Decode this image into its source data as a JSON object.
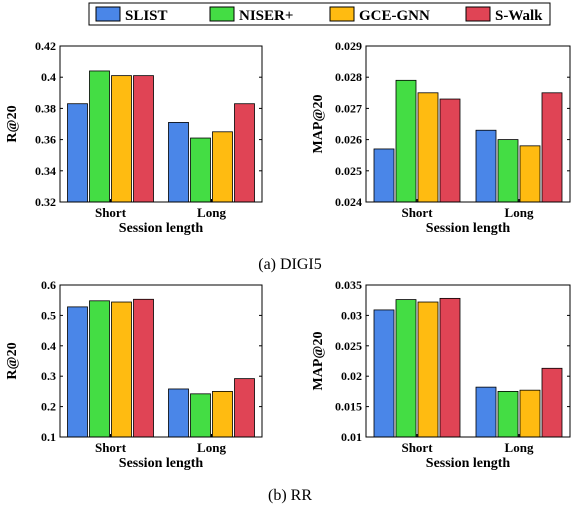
{
  "legend": {
    "series": [
      "SLIST",
      "NISER+",
      "GCE-GNN",
      "S-Walk"
    ],
    "colors": [
      "#4a86e8",
      "#44dd44",
      "#ffbb11",
      "#e04455"
    ]
  },
  "captions": [
    "(a) DIGI5",
    "(b) RR"
  ],
  "chart_data": [
    {
      "type": "bar",
      "categories": [
        "Short",
        "Long"
      ],
      "xlabel": "Session length",
      "ylabel": "R@20",
      "ylim": [
        0.32,
        0.42
      ],
      "ytick_labels": [
        "0.32",
        "0.34",
        "0.36",
        "0.38",
        "0.4",
        "0.42"
      ],
      "series": [
        {
          "name": "SLIST",
          "values": [
            0.383,
            0.371
          ]
        },
        {
          "name": "NISER+",
          "values": [
            0.404,
            0.361
          ]
        },
        {
          "name": "GCE-GNN",
          "values": [
            0.401,
            0.365
          ]
        },
        {
          "name": "S-Walk",
          "values": [
            0.401,
            0.383
          ]
        }
      ]
    },
    {
      "type": "bar",
      "categories": [
        "Short",
        "Long"
      ],
      "xlabel": "Session length",
      "ylabel": "MAP@20",
      "ylim": [
        0.024,
        0.029
      ],
      "ytick_labels": [
        "0.024",
        "0.025",
        "0.026",
        "0.027",
        "0.028",
        "0.029"
      ],
      "series": [
        {
          "name": "SLIST",
          "values": [
            0.0257,
            0.0263
          ]
        },
        {
          "name": "NISER+",
          "values": [
            0.0279,
            0.026
          ]
        },
        {
          "name": "GCE-GNN",
          "values": [
            0.0275,
            0.0258
          ]
        },
        {
          "name": "S-Walk",
          "values": [
            0.0273,
            0.0275
          ]
        }
      ]
    },
    {
      "type": "bar",
      "categories": [
        "Short",
        "Long"
      ],
      "xlabel": "Session length",
      "ylabel": "R@20",
      "ylim": [
        0.1,
        0.6
      ],
      "ytick_labels": [
        "0.1",
        "0.2",
        "0.3",
        "0.4",
        "0.5",
        "0.6"
      ],
      "series": [
        {
          "name": "SLIST",
          "values": [
            0.528,
            0.258
          ]
        },
        {
          "name": "NISER+",
          "values": [
            0.548,
            0.242
          ]
        },
        {
          "name": "GCE-GNN",
          "values": [
            0.544,
            0.25
          ]
        },
        {
          "name": "S-Walk",
          "values": [
            0.553,
            0.292
          ]
        }
      ]
    },
    {
      "type": "bar",
      "categories": [
        "Short",
        "Long"
      ],
      "xlabel": "Session length",
      "ylabel": "MAP@20",
      "ylim": [
        0.01,
        0.035
      ],
      "ytick_labels": [
        "0.01",
        "0.015",
        "0.02",
        "0.025",
        "0.03",
        "0.035"
      ],
      "series": [
        {
          "name": "SLIST",
          "values": [
            0.0309,
            0.0182
          ]
        },
        {
          "name": "NISER+",
          "values": [
            0.0326,
            0.0175
          ]
        },
        {
          "name": "GCE-GNN",
          "values": [
            0.0322,
            0.0177
          ]
        },
        {
          "name": "S-Walk",
          "values": [
            0.0328,
            0.0213
          ]
        }
      ]
    }
  ]
}
